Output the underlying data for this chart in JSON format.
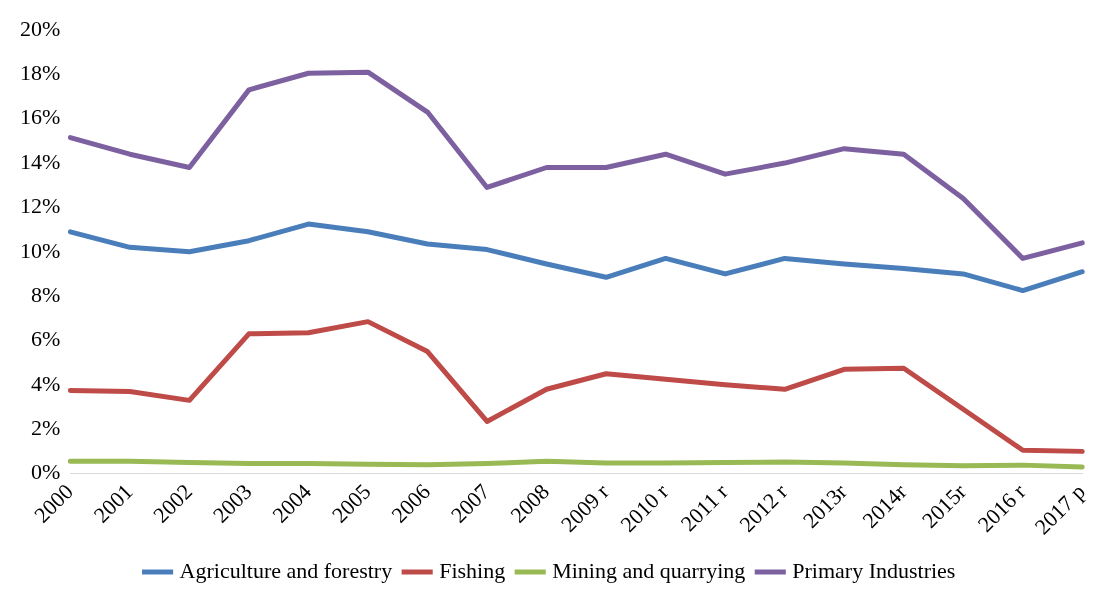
{
  "chart_data": {
    "type": "line",
    "categories": [
      "2000",
      "2001",
      "2002",
      "2003",
      "2004",
      "2005",
      "2006",
      "2007",
      "2008",
      "2009 r",
      "2010 r",
      "2011 r",
      "2012 r",
      "2013r",
      "2014r",
      "2015r",
      "2016 r",
      "2017 p"
    ],
    "series": [
      {
        "name": "Agriculture and forestry",
        "color": "#4a7ebb",
        "values": [
          10.9,
          10.2,
          10.0,
          10.5,
          11.25,
          10.9,
          10.35,
          10.1,
          9.45,
          8.85,
          9.7,
          9.0,
          9.7,
          9.45,
          9.25,
          9.0,
          8.25,
          9.1
        ]
      },
      {
        "name": "Fishing",
        "color": "#be4b48",
        "values": [
          3.75,
          3.7,
          3.3,
          6.3,
          6.35,
          6.85,
          5.5,
          2.35,
          3.8,
          4.5,
          4.25,
          4.0,
          3.8,
          4.7,
          4.75,
          2.9,
          1.05,
          1.0
        ]
      },
      {
        "name": "Mining and quarrying",
        "color": "#98b954",
        "values": [
          0.55,
          0.55,
          0.5,
          0.45,
          0.45,
          0.42,
          0.4,
          0.45,
          0.55,
          0.48,
          0.48,
          0.5,
          0.52,
          0.48,
          0.4,
          0.35,
          0.38,
          0.3
        ]
      },
      {
        "name": "Primary Industries",
        "color": "#7d60a0",
        "values": [
          15.15,
          14.4,
          13.8,
          17.3,
          18.05,
          18.1,
          16.3,
          12.9,
          13.8,
          13.8,
          14.4,
          13.5,
          14.0,
          14.65,
          14.4,
          12.4,
          9.7,
          10.4
        ]
      }
    ],
    "ylim": [
      0,
      20
    ],
    "yticks": [
      {
        "value": 0,
        "label": "0%"
      },
      {
        "value": 2,
        "label": "2%"
      },
      {
        "value": 4,
        "label": "4%"
      },
      {
        "value": 6,
        "label": "6%"
      },
      {
        "value": 8,
        "label": "8%"
      },
      {
        "value": 10,
        "label": "10%"
      },
      {
        "value": 12,
        "label": "12%"
      },
      {
        "value": 14,
        "label": "14%"
      },
      {
        "value": 16,
        "label": "16%"
      },
      {
        "value": 18,
        "label": "18%"
      },
      {
        "value": 20,
        "label": "20%"
      }
    ],
    "grid": false,
    "legend": "bottom",
    "marker": "none",
    "line_style": "solid"
  }
}
